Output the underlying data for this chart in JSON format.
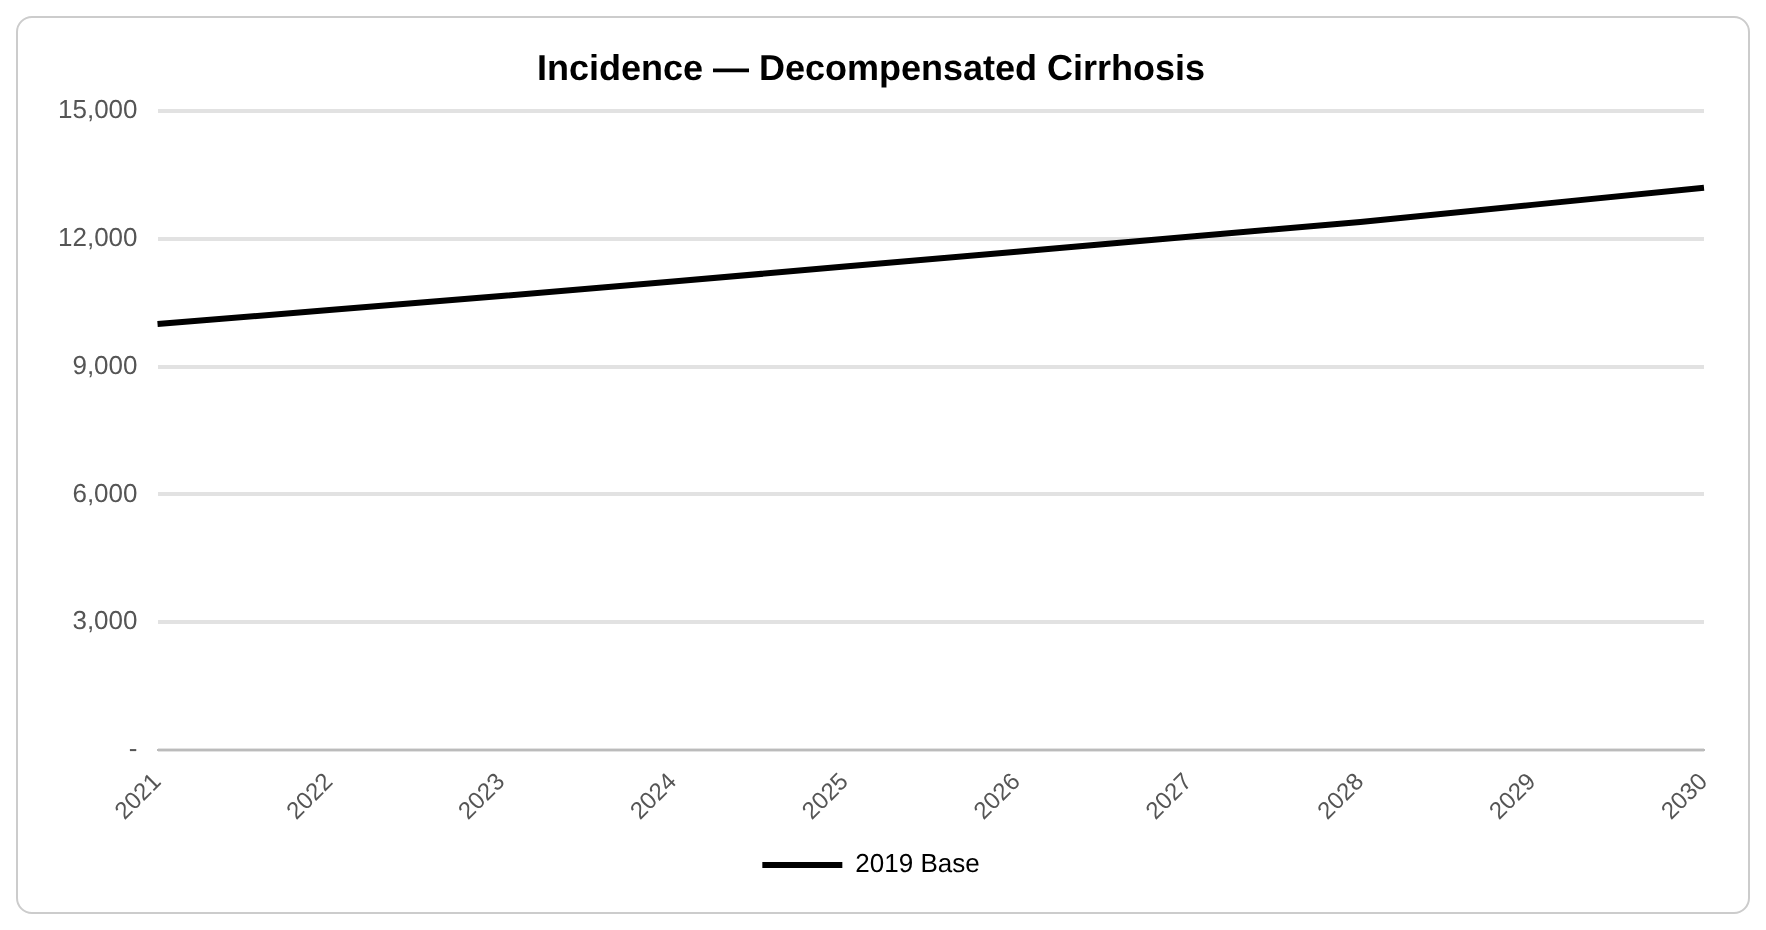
{
  "chart_data": {
    "type": "line",
    "title": "Incidence — Decompensated Cirrhosis",
    "categories": [
      "2021",
      "2022",
      "2023",
      "2024",
      "2025",
      "2026",
      "2027",
      "2028",
      "2029",
      "2030"
    ],
    "series": [
      {
        "name": "2019 Base",
        "color": "#000000",
        "values": [
          10000,
          10330,
          10660,
          11000,
          11350,
          11700,
          12050,
          12400,
          12800,
          13200
        ]
      }
    ],
    "ylim": [
      0,
      15000
    ],
    "yticks": [
      {
        "value": 0,
        "label": "-"
      },
      {
        "value": 3000,
        "label": "3,000"
      },
      {
        "value": 6000,
        "label": "6,000"
      },
      {
        "value": 9000,
        "label": "9,000"
      },
      {
        "value": 12000,
        "label": "12,000"
      },
      {
        "value": 15000,
        "label": "15,000"
      }
    ],
    "grid": "y",
    "legend": "bottom",
    "marker": "none",
    "line_style": "solid"
  }
}
